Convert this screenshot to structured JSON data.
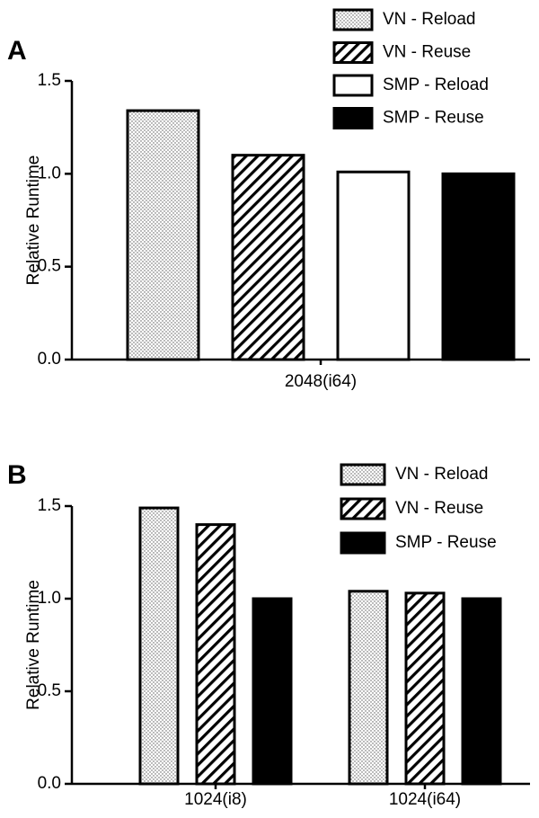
{
  "chart_data": [
    {
      "type": "bar",
      "panel": "A",
      "ylabel": "Relative Runtime",
      "categories": [
        "2048(i64)"
      ],
      "series": [
        {
          "name": "VN - Reload",
          "pattern": "dots",
          "values": [
            1.34
          ]
        },
        {
          "name": "VN - Reuse",
          "pattern": "hatch",
          "values": [
            1.1
          ]
        },
        {
          "name": "SMP - Reload",
          "pattern": "none",
          "values": [
            1.01
          ]
        },
        {
          "name": "SMP - Reuse",
          "pattern": "solid",
          "values": [
            1.0
          ]
        }
      ],
      "ylim": [
        0,
        1.5
      ],
      "yticks": [
        {
          "value": 0,
          "label": "0.0"
        },
        0.5,
        {
          "value": 1,
          "label": "1.0"
        },
        1.5
      ],
      "legend": "upper right"
    },
    {
      "type": "bar",
      "panel": "B",
      "ylabel": "Relative Runtime",
      "categories": [
        "1024(i8)",
        "1024(i64)"
      ],
      "series": [
        {
          "name": "VN - Reload",
          "pattern": "dots",
          "values": [
            1.49,
            1.04
          ]
        },
        {
          "name": "VN - Reuse",
          "pattern": "hatch",
          "values": [
            1.4,
            1.03
          ]
        },
        {
          "name": "SMP - Reuse",
          "pattern": "solid",
          "values": [
            1.0,
            1.0
          ]
        }
      ],
      "ylim": [
        0,
        1.5
      ],
      "yticks": [
        {
          "value": 0,
          "label": "0.0"
        },
        0.5,
        {
          "value": 1,
          "label": "1.0"
        },
        1.5
      ],
      "legend": "upper right"
    }
  ]
}
